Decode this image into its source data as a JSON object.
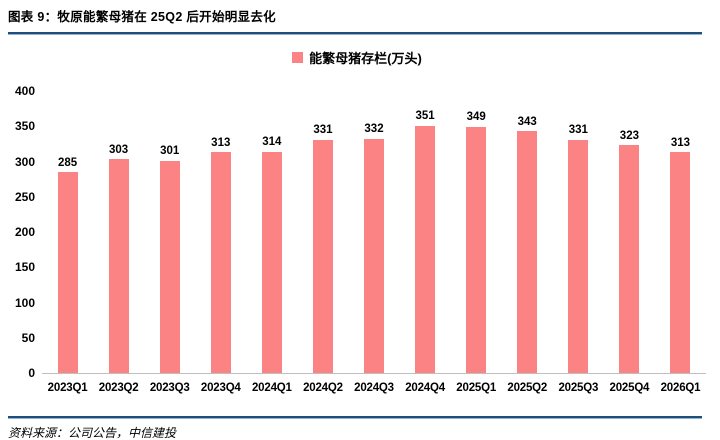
{
  "header": {
    "title": "图表 9：牧原能繁母猪在 25Q2 后开始明显去化"
  },
  "legend": {
    "label": "能繁母猪存栏(万头)"
  },
  "footer": {
    "source": "资料来源：公司公告，中信建投"
  },
  "colors": {
    "bar": "#FB8383",
    "rule_dark": "#1F4E79",
    "rule_light": "#8EB4D8",
    "axis_line": "#BFBFBF",
    "text": "#000000"
  },
  "chart_data": {
    "type": "bar",
    "title": "能繁母猪存栏(万头)",
    "categories": [
      "2023Q1",
      "2023Q2",
      "2023Q3",
      "2023Q4",
      "2024Q1",
      "2024Q2",
      "2024Q3",
      "2024Q4",
      "2025Q1",
      "2025Q2",
      "2025Q3",
      "2025Q4",
      "2026Q1"
    ],
    "values": [
      285,
      303,
      301,
      313,
      314,
      331,
      332,
      351,
      349,
      343,
      331,
      323,
      313
    ],
    "xlabel": "",
    "ylabel": "",
    "ylim": [
      0,
      400
    ],
    "ytick_step": 50,
    "grid": false,
    "legend_position": "top-center",
    "value_labels": true
  }
}
